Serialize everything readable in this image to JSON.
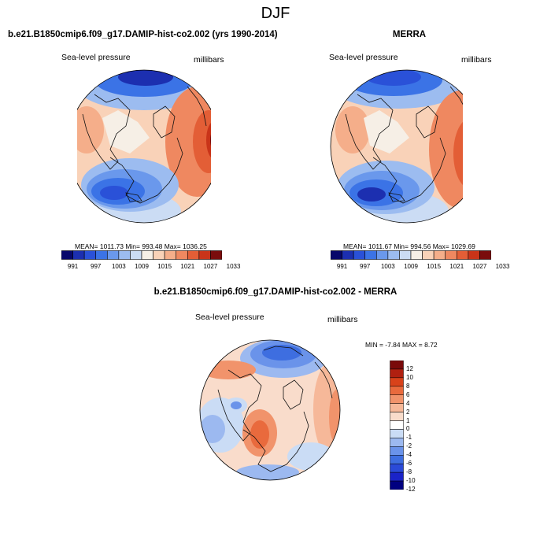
{
  "figure": {
    "title": "DJF",
    "diff_title": "b.e21.B1850cmip6.f09_g17.DAMIP-hist-co2.002 - MERRA"
  },
  "panels": [
    {
      "title": "b.e21.B1850cmip6.f09_g17.DAMIP-hist-co2.002 (yrs 1990-2014)",
      "left_label": "Sea-level pressure",
      "right_label": "millibars",
      "stats": "MEAN= 1011.73  Min= 993.48  Max= 1036.25"
    },
    {
      "title": "MERRA",
      "left_label": "Sea-level pressure",
      "right_label": "millibars",
      "stats": "MEAN= 1011.67  Min= 994.56  Max= 1029.69"
    },
    {
      "left_label": "Sea-level pressure",
      "right_label": "millibars",
      "stats": "MIN =  -7.84 MAX =   8.72"
    }
  ],
  "colors": {
    "pressure_bins": [
      "#08086b",
      "#1c2fb0",
      "#2a51d8",
      "#3b73e6",
      "#6a98ec",
      "#9cbcf0",
      "#cbdcf4",
      "#f6efe6",
      "#f9d2b8",
      "#f5ae8a",
      "#ef8860",
      "#e35e36",
      "#c93419",
      "#7a0c0c"
    ],
    "diff_bins": [
      "#000080",
      "#1a23c8",
      "#2a4ad8",
      "#3e6ee0",
      "#6a93ea",
      "#9cb9f0",
      "#cadcf5",
      "#ffffff",
      "#f9dccb",
      "#f6b899",
      "#f1936b",
      "#e96a3d",
      "#d8421a",
      "#b02010",
      "#7a0a0a"
    ],
    "coast": "#111111"
  },
  "chart_data": [
    {
      "type": "heatmap",
      "title": "b.e21.B1850cmip6.f09_g17.DAMIP-hist-co2.002 (yrs 1990-2014)",
      "variable": "Sea-level pressure",
      "units": "millibars",
      "projection": "north polar stereographic",
      "season": "DJF",
      "mean": 1011.73,
      "min": 993.48,
      "max": 1036.25,
      "colorbar_levels": [
        991,
        997,
        1003,
        1009,
        1015,
        1021,
        1027,
        1033
      ],
      "colorbar_labels": [
        "991",
        "997",
        "1003",
        "1009",
        "1015",
        "1021",
        "1027",
        "1033"
      ],
      "colorbar_orientation": "horizontal"
    },
    {
      "type": "heatmap",
      "title": "MERRA",
      "variable": "Sea-level pressure",
      "units": "millibars",
      "projection": "north polar stereographic",
      "season": "DJF",
      "mean": 1011.67,
      "min": 994.56,
      "max": 1029.69,
      "colorbar_levels": [
        991,
        997,
        1003,
        1009,
        1015,
        1021,
        1027,
        1033
      ],
      "colorbar_labels": [
        "991",
        "997",
        "1003",
        "1009",
        "1015",
        "1021",
        "1027",
        "1033"
      ],
      "colorbar_orientation": "horizontal"
    },
    {
      "type": "heatmap",
      "title": "b.e21.B1850cmip6.f09_g17.DAMIP-hist-co2.002 - MERRA",
      "variable": "Sea-level pressure",
      "units": "millibars",
      "projection": "north polar stereographic",
      "season": "DJF",
      "min": -7.84,
      "max": 8.72,
      "colorbar_levels": [
        12,
        10,
        8,
        6,
        4,
        2,
        1,
        0,
        -1,
        -2,
        -4,
        -6,
        -8,
        -10,
        -12
      ],
      "colorbar_labels": [
        "12",
        "10",
        "8",
        "6",
        "4",
        "2",
        "1",
        "0",
        "-1",
        "-2",
        "-4",
        "-6",
        "-8",
        "-10",
        "-12"
      ],
      "colorbar_orientation": "vertical"
    }
  ]
}
